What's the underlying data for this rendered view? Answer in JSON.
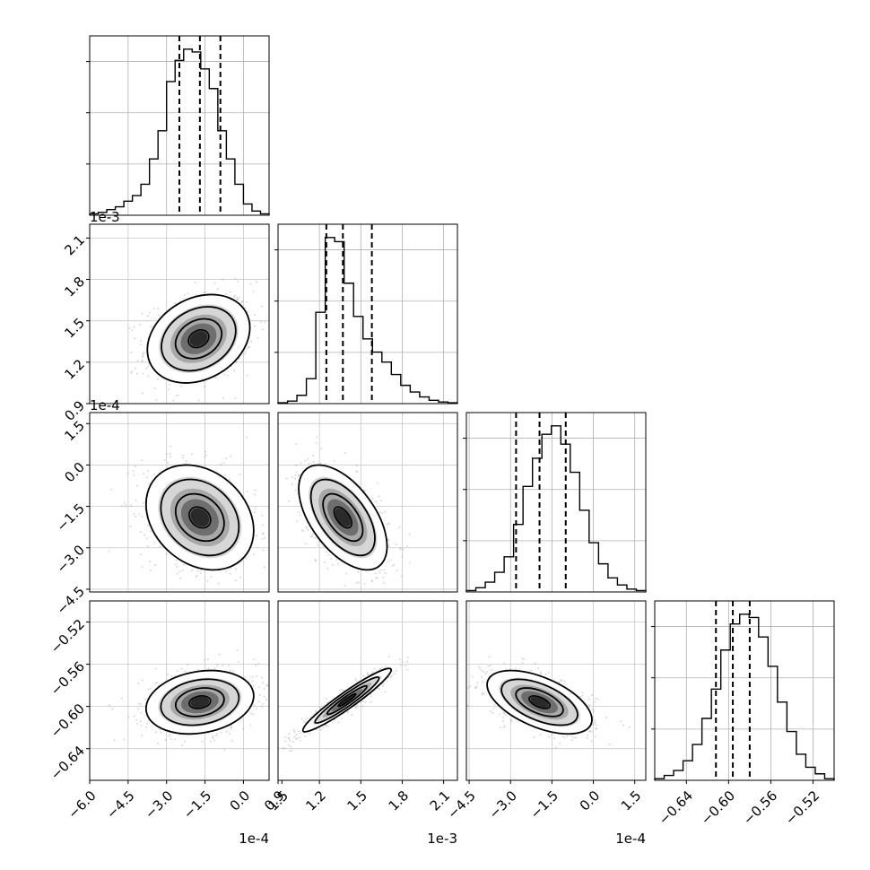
{
  "chart_data": {
    "type": "corner",
    "grid": true,
    "params": [
      {
        "offset": "1e-4",
        "ticks": [
          "−6.0",
          "−4.5",
          "−3.0",
          "−1.5",
          "0.0",
          "1.5"
        ],
        "tick_values": [
          -6.0,
          -4.5,
          -3.0,
          -1.5,
          0.0,
          1.5
        ],
        "range": [
          -6.0,
          1.0
        ],
        "quantiles": [
          -2.5,
          -1.7,
          -0.9
        ]
      },
      {
        "offset": "1e-3",
        "ticks": [
          "0.9",
          "1.2",
          "1.5",
          "1.8",
          "2.1"
        ],
        "tick_values": [
          0.9,
          1.2,
          1.5,
          1.8,
          2.1
        ],
        "range": [
          0.9,
          2.2
        ],
        "quantiles": [
          1.25,
          1.37,
          1.58
        ]
      },
      {
        "offset": "1e-4",
        "ticks": [
          "−4.5",
          "−3.0",
          "−1.5",
          "0.0",
          "1.5"
        ],
        "tick_values": [
          -4.5,
          -3.0,
          -1.5,
          0.0,
          1.5
        ],
        "range": [
          -4.6,
          1.9
        ],
        "quantiles": [
          -2.8,
          -1.95,
          -1.0
        ]
      },
      {
        "offset": "",
        "ticks": [
          "−0.64",
          "−0.60",
          "−0.56",
          "−0.52"
        ],
        "tick_values": [
          -0.64,
          -0.6,
          -0.56,
          -0.52
        ],
        "range": [
          -0.67,
          -0.5
        ],
        "quantiles": [
          -0.612,
          -0.596,
          -0.58
        ]
      }
    ],
    "histograms": [
      {
        "counts": [
          1,
          2,
          4,
          6,
          10,
          14,
          22,
          40,
          60,
          95,
          110,
          118,
          116,
          104,
          90,
          60,
          40,
          22,
          8,
          3,
          1
        ]
      },
      {
        "counts": [
          1,
          3,
          10,
          30,
          110,
          200,
          195,
          145,
          105,
          78,
          62,
          50,
          35,
          22,
          14,
          8,
          4,
          2,
          1
        ]
      },
      {
        "counts": [
          1,
          3,
          7,
          14,
          25,
          48,
          75,
          95,
          112,
          118,
          105,
          85,
          58,
          35,
          20,
          10,
          5,
          2,
          1
        ]
      },
      {
        "counts": [
          1,
          3,
          6,
          12,
          22,
          38,
          56,
          80,
          96,
          102,
          100,
          88,
          70,
          48,
          30,
          16,
          8,
          4,
          1
        ]
      }
    ],
    "pairs": [
      {
        "row": 1,
        "col": 0,
        "center": [
          -1.75,
          1.37
        ],
        "sd": [
          1.0,
          0.16
        ],
        "rho": 0.25
      },
      {
        "row": 2,
        "col": 0,
        "center": [
          -1.7,
          -1.9
        ],
        "sd": [
          1.05,
          0.95
        ],
        "rho": -0.25
      },
      {
        "row": 2,
        "col": 1,
        "center": [
          1.37,
          -1.9
        ],
        "sd": [
          0.16,
          0.95
        ],
        "rho": -0.55
      },
      {
        "row": 3,
        "col": 0,
        "center": [
          -1.7,
          -0.596
        ],
        "sd": [
          1.05,
          0.015
        ],
        "rho": 0.2
      },
      {
        "row": 3,
        "col": 1,
        "center": [
          1.4,
          -0.594
        ],
        "sd": [
          0.16,
          0.015
        ],
        "rho": 0.95
      },
      {
        "row": 3,
        "col": 2,
        "center": [
          -1.95,
          -0.596
        ],
        "sd": [
          0.95,
          0.015
        ],
        "rho": -0.55
      }
    ]
  }
}
